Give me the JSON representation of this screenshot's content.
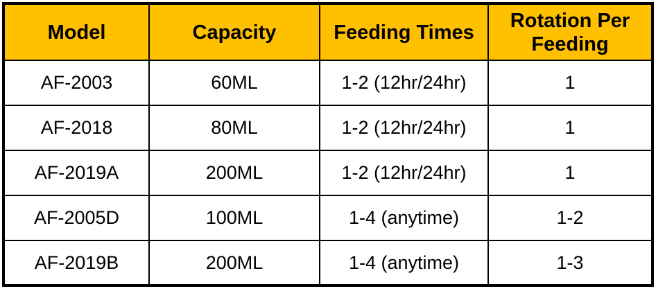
{
  "colors": {
    "header_background": "#FFC000",
    "border": "#000000",
    "text": "#000000",
    "gridline": "#d6d6d6"
  },
  "table": {
    "columns": [
      "Model",
      "Capacity",
      "Feeding Times",
      "Rotation Per Feeding"
    ],
    "rows": [
      {
        "model": "AF-2003",
        "capacity": "60ML",
        "feeding_times": "1-2 (12hr/24hr)",
        "rotation_per_feeding": "1"
      },
      {
        "model": "AF-2018",
        "capacity": "80ML",
        "feeding_times": "1-2 (12hr/24hr)",
        "rotation_per_feeding": "1"
      },
      {
        "model": "AF-2019A",
        "capacity": "200ML",
        "feeding_times": "1-2 (12hr/24hr)",
        "rotation_per_feeding": "1"
      },
      {
        "model": "AF-2005D",
        "capacity": "100ML",
        "feeding_times": "1-4 (anytime)",
        "rotation_per_feeding": "1-2"
      },
      {
        "model": "AF-2019B",
        "capacity": "200ML",
        "feeding_times": "1-4 (anytime)",
        "rotation_per_feeding": "1-3"
      }
    ]
  }
}
